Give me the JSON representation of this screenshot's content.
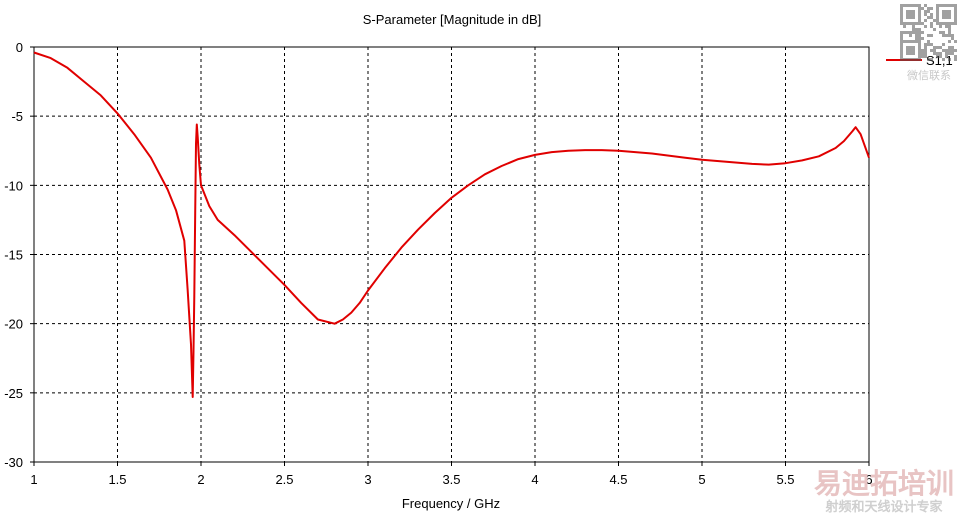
{
  "chart_data": {
    "type": "line",
    "title": "S-Parameter [Magnitude in dB]",
    "xlabel": "Frequency / GHz",
    "ylabel": "",
    "xlim": [
      1,
      6
    ],
    "ylim": [
      -30,
      0
    ],
    "xticks": [
      1,
      1.5,
      2,
      2.5,
      3,
      3.5,
      4,
      4.5,
      5,
      5.5,
      6
    ],
    "yticks": [
      0,
      -5,
      -10,
      -15,
      -20,
      -25,
      -30
    ],
    "grid": true,
    "legend": "top-right",
    "series": [
      {
        "name": "S1,1",
        "color": "#e00000",
        "x": [
          1.0,
          1.1,
          1.2,
          1.3,
          1.4,
          1.5,
          1.6,
          1.7,
          1.8,
          1.85,
          1.9,
          1.92,
          1.94,
          1.95,
          1.955,
          1.96,
          1.965,
          1.97,
          1.975,
          1.98,
          1.99,
          2.0,
          2.05,
          2.1,
          2.2,
          2.3,
          2.4,
          2.5,
          2.6,
          2.7,
          2.8,
          2.85,
          2.9,
          2.95,
          3.0,
          3.1,
          3.2,
          3.3,
          3.4,
          3.5,
          3.6,
          3.7,
          3.8,
          3.9,
          4.0,
          4.1,
          4.2,
          4.3,
          4.4,
          4.5,
          4.6,
          4.7,
          4.8,
          4.9,
          5.0,
          5.1,
          5.2,
          5.3,
          5.4,
          5.5,
          5.6,
          5.7,
          5.8,
          5.85,
          5.9,
          5.92,
          5.95,
          6.0
        ],
        "values": [
          -0.4,
          -0.8,
          -1.5,
          -2.5,
          -3.5,
          -4.8,
          -6.3,
          -8.0,
          -10.3,
          -11.8,
          -14.0,
          -17.5,
          -21.5,
          -25.3,
          -22.0,
          -18.0,
          -12.0,
          -7.0,
          -5.6,
          -6.5,
          -8.5,
          -10.0,
          -11.5,
          -12.5,
          -13.6,
          -14.8,
          -16.0,
          -17.2,
          -18.5,
          -19.7,
          -20.0,
          -19.7,
          -19.2,
          -18.5,
          -17.6,
          -16.0,
          -14.5,
          -13.2,
          -12.0,
          -10.9,
          -10.0,
          -9.2,
          -8.6,
          -8.1,
          -7.8,
          -7.6,
          -7.5,
          -7.45,
          -7.45,
          -7.5,
          -7.6,
          -7.7,
          -7.85,
          -8.0,
          -8.15,
          -8.25,
          -8.35,
          -8.45,
          -8.5,
          -8.4,
          -8.2,
          -7.9,
          -7.3,
          -6.8,
          -6.1,
          -5.8,
          -6.3,
          -8.0
        ]
      }
    ]
  },
  "watermark": {
    "brand": "易迪拓培训",
    "tagline": "射频和天线设计专家",
    "qr_caption": "微信联系",
    "brand_color": "#e8c4c4",
    "tagline_color": "#cfcfcf"
  }
}
